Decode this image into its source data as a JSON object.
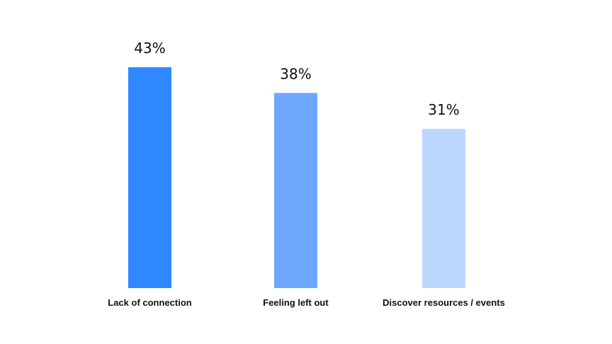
{
  "chart_data": {
    "type": "bar",
    "categories": [
      "Lack of connection",
      "Feeling left out",
      "Discover resources / events"
    ],
    "values": [
      43,
      38,
      31
    ],
    "value_labels": [
      "43%",
      "38%",
      "31%"
    ],
    "bar_colors": [
      "#2f88ff",
      "#6ea8fe",
      "#bdd8ff"
    ],
    "title": "",
    "xlabel": "",
    "ylabel": "",
    "ylim": [
      0,
      43
    ],
    "grid": false,
    "legend": "none",
    "unit": "%"
  }
}
